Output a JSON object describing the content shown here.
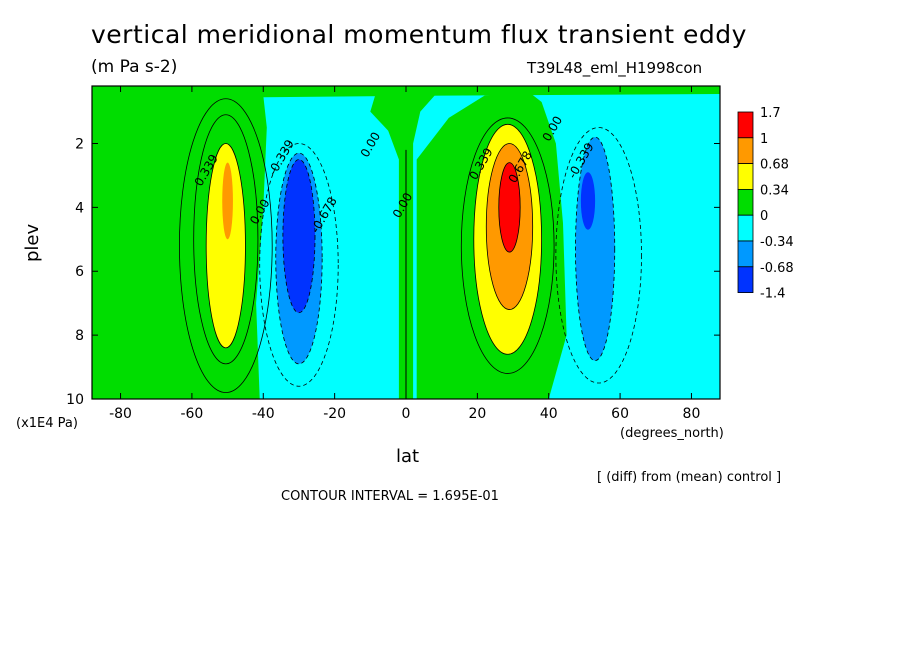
{
  "header": {
    "title": "vertical meridional momentum flux transient eddy",
    "units": "(m Pa s-2)",
    "experiment": "T39L48_eml_H1998con"
  },
  "footer": {
    "diff_note": "[ (diff) from (mean) control ]",
    "contour_interval": "CONTOUR INTERVAL = 1.695E-01"
  },
  "chart_data": {
    "type": "heatmap",
    "title": "vertical meridional momentum flux transient eddy",
    "units": "(m Pa s-2)",
    "xlabel": "lat",
    "x_unit": "(degrees_north)",
    "ylabel": "plev",
    "y_unit": "(x1E4 Pa)",
    "xlim": [
      -88,
      88
    ],
    "ylim": [
      10,
      0.2
    ],
    "x_ticks": [
      -80,
      -60,
      -40,
      -20,
      0,
      20,
      40,
      60,
      80
    ],
    "y_ticks": [
      2,
      4,
      6,
      8,
      10
    ],
    "contour_interval": 0.1695,
    "colorbar": {
      "labels": [
        "1.7",
        "1",
        "0.68",
        "0.34",
        "0",
        "-0.34",
        "-0.68",
        "-1.4"
      ],
      "colors": [
        "#ff0000",
        "#ff9900",
        "#ffff00",
        "#00dd00",
        "#00ffff",
        "#0099ff",
        "#0033ff"
      ]
    },
    "contour_labels": [
      {
        "text": "0.339",
        "lat": -55,
        "plev": 2.9
      },
      {
        "text": "-0.339",
        "lat": -34,
        "plev": 2.5
      },
      {
        "text": "-0.678",
        "lat": -22,
        "plev": 4.3
      },
      {
        "text": "0.00",
        "lat": -40,
        "plev": 4.2
      },
      {
        "text": "0.00",
        "lat": -9,
        "plev": 2.1
      },
      {
        "text": "0.00",
        "lat": 0,
        "plev": 4.0
      },
      {
        "text": "0.339",
        "lat": 22,
        "plev": 2.7
      },
      {
        "text": "0.678",
        "lat": 33,
        "plev": 2.8
      },
      {
        "text": "0.00",
        "lat": 42,
        "plev": 1.6
      },
      {
        "text": "-0.339",
        "lat": 50,
        "plev": 2.6
      }
    ],
    "features": [
      {
        "name": "sh positive lobe",
        "lat": -50,
        "plev": 4,
        "peak": 0.68
      },
      {
        "name": "sh negative lobe",
        "lat": -30,
        "plev": 4.5,
        "peak": -0.68
      },
      {
        "name": "nh positive lobe",
        "lat": 29,
        "plev": 4,
        "peak": 1.0
      },
      {
        "name": "nh negative lobe",
        "lat": 51,
        "plev": 3.8,
        "peak": -0.68
      }
    ]
  }
}
